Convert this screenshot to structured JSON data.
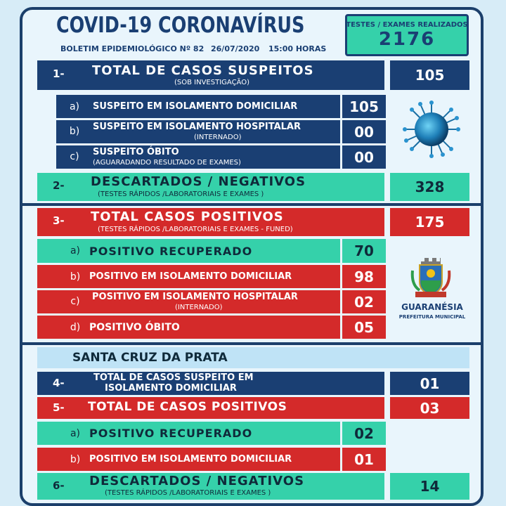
{
  "header": {
    "title": "COVID-19  CORONAVÍRUS",
    "bulletin": "BOLETIM EPIDEMIOLÓGICO Nº 82",
    "date": "26/07/2020",
    "time": "15:00 HORAS",
    "tests_label": "TESTES / EXAMES REALIZADOS",
    "tests_value": "2176"
  },
  "s1": {
    "index": "1-",
    "label": "TOTAL DE CASOS SUSPEITOS",
    "note": "(SOB INVESTIGAÇÃO)",
    "value": "105"
  },
  "s1a": {
    "letter": "a)",
    "label": "SUSPEITO EM ISOLAMENTO DOMICILIAR",
    "value": "105"
  },
  "s1b": {
    "letter": "b)",
    "label": "SUSPEITO EM ISOLAMENTO HOSPITALAR",
    "note": "(INTERNADO)",
    "value": "00"
  },
  "s1c": {
    "letter": "c)",
    "label": "SUSPEITO ÓBITO",
    "note": "(AGUARADANDO RESULTADO  DE EXAMES)",
    "value": "00"
  },
  "s2": {
    "index": "2-",
    "label": "DESCARTADOS / NEGATIVOS",
    "note": "(TESTES RÁPIDOS /LABORATORIAIS E EXAMES )",
    "value": "328"
  },
  "s3": {
    "index": "3-",
    "label": "TOTAL CASOS POSITIVOS",
    "note": "(TESTES RÁPIDOS /LABORATORIAIS E EXAMES - FUNED)",
    "value": "175"
  },
  "s3a": {
    "letter": "a)",
    "label": "POSITIVO RECUPERADO",
    "value": "70"
  },
  "s3b": {
    "letter": "b)",
    "label": "POSITIVO EM ISOLAMENTO DOMICILIAR",
    "value": "98"
  },
  "s3c": {
    "letter": "c)",
    "label": "POSITIVO EM ISOLAMENTO HOSPITALAR",
    "note": "(INTERNADO)",
    "value": "02"
  },
  "s3d": {
    "letter": "d)",
    "label": "POSITIVO ÓBITO",
    "value": "05"
  },
  "logo": {
    "name": "GUARANÉSIA",
    "sub": "PREFEITURA MUNICIPAL"
  },
  "district": {
    "title": "SANTA CRUZ DA PRATA"
  },
  "s4": {
    "index": "4-",
    "label_line1": "TOTAL DE CASOS SUSPEITO EM",
    "label_line2": "ISOLAMENTO DOMICILIAR",
    "value": "01"
  },
  "s5": {
    "index": "5-",
    "label": "TOTAL DE CASOS POSITIVOS",
    "value": "03"
  },
  "s5a": {
    "letter": "a)",
    "label": "POSITIVO RECUPERADO",
    "value": "02"
  },
  "s5b": {
    "letter": "b)",
    "label": "POSITIVO EM ISOLAMENTO DOMICILIAR",
    "value": "01"
  },
  "s6": {
    "index": "6-",
    "label": "DESCARTADOS / NEGATIVOS",
    "note": "(TESTES RÁPIDOS /LABORATORIAIS E EXAMES )",
    "value": "14"
  },
  "icons": {
    "virus": "coronavirus-icon",
    "crest": "city-crest-icon"
  },
  "colors": {
    "navy": "#1a3f73",
    "green": "#35d1aa",
    "red": "#d42a2a",
    "background": "#d7ecf7"
  }
}
